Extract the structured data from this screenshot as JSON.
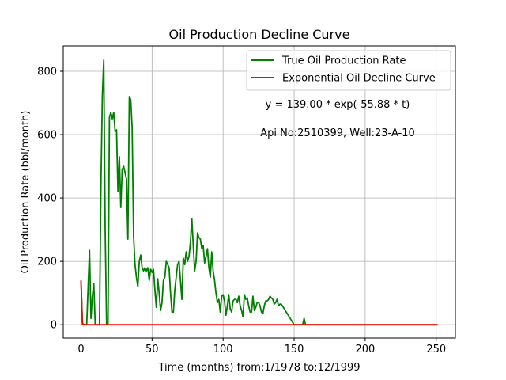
{
  "chart_data": {
    "type": "line",
    "title": "Oil Production Decline Curve",
    "xlabel": "Time (months) from:1/1978 to:12/1999",
    "ylabel": "Oil Production Rate (bbl/month)",
    "xlim": [
      -12.5,
      263.5
    ],
    "ylim": [
      -42,
      880
    ],
    "xticks": [
      0,
      50,
      100,
      150,
      200,
      250
    ],
    "yticks": [
      0,
      200,
      400,
      600,
      800
    ],
    "grid": true,
    "legend_position": "top-right",
    "annotations": [
      "y = 139.00 * exp(-55.88 * t)",
      "Api No:2510399, Well:23-A-10"
    ],
    "series": [
      {
        "name": "True Oil Production Rate",
        "color": "#008000",
        "x": [
          0,
          1,
          2,
          3,
          4,
          5,
          6,
          7,
          8,
          9,
          10,
          11,
          12,
          13,
          14,
          15,
          16,
          17,
          18,
          19,
          20,
          21,
          22,
          23,
          24,
          25,
          26,
          27,
          28,
          29,
          30,
          31,
          32,
          33,
          34,
          35,
          36,
          37,
          38,
          39,
          40,
          41,
          42,
          43,
          44,
          45,
          46,
          47,
          48,
          49,
          50,
          51,
          52,
          53,
          54,
          55,
          56,
          57,
          58,
          59,
          60,
          61,
          62,
          63,
          64,
          65,
          66,
          67,
          68,
          69,
          70,
          71,
          72,
          73,
          74,
          75,
          76,
          77,
          78,
          79,
          80,
          81,
          82,
          83,
          84,
          85,
          86,
          87,
          88,
          89,
          90,
          91,
          92,
          93,
          94,
          95,
          96,
          97,
          98,
          99,
          100,
          101,
          102,
          103,
          104,
          105,
          106,
          107,
          108,
          109,
          110,
          111,
          112,
          113,
          114,
          115,
          116,
          117,
          118,
          119,
          120,
          121,
          122,
          123,
          124,
          125,
          126,
          127,
          128,
          129,
          130,
          131,
          132,
          133,
          134,
          135,
          136,
          137,
          138,
          139,
          140,
          141,
          150,
          155,
          156,
          157,
          158,
          160,
          251
        ],
        "values": [
          140,
          5,
          0,
          0,
          0,
          120,
          235,
          20,
          90,
          130,
          0,
          0,
          0,
          0,
          430,
          720,
          835,
          300,
          0,
          0,
          655,
          670,
          650,
          670,
          610,
          615,
          420,
          530,
          370,
          490,
          500,
          480,
          460,
          270,
          720,
          710,
          620,
          280,
          190,
          150,
          120,
          200,
          220,
          180,
          170,
          180,
          170,
          180,
          140,
          175,
          165,
          175,
          110,
          55,
          145,
          100,
          45,
          70,
          140,
          150,
          200,
          190,
          180,
          100,
          40,
          40,
          110,
          150,
          190,
          200,
          140,
          80,
          210,
          190,
          230,
          200,
          215,
          260,
          335,
          250,
          170,
          200,
          290,
          275,
          270,
          240,
          250,
          195,
          215,
          240,
          180,
          150,
          230,
          170,
          140,
          100,
          70,
          80,
          40,
          90,
          95,
          75,
          30,
          60,
          95,
          50,
          40,
          75,
          80,
          80,
          70,
          90,
          60,
          45,
          25,
          95,
          80,
          85,
          60,
          40,
          40,
          90,
          45,
          55,
          70,
          70,
          60,
          40,
          35,
          60,
          75,
          75,
          80,
          90,
          85,
          80,
          65,
          70,
          80,
          60,
          65,
          65,
          0,
          0,
          0,
          20,
          0,
          0,
          0
        ]
      },
      {
        "name": "Exponential Oil Decline Curve",
        "color": "#ff0000",
        "x": [
          0,
          1,
          2,
          5,
          10,
          50,
          100,
          150,
          200,
          251
        ],
        "values": [
          139,
          0,
          0,
          0,
          0,
          0,
          0,
          0,
          0,
          0
        ]
      }
    ]
  }
}
